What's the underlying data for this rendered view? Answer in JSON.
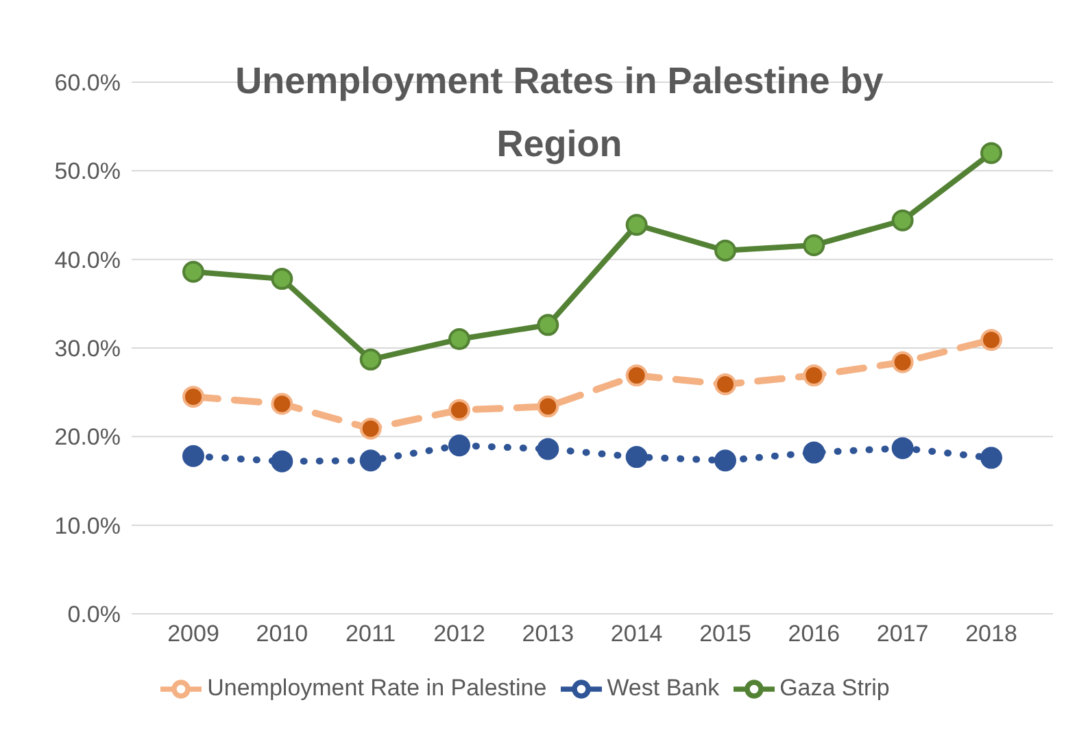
{
  "chart_data": {
    "type": "line",
    "title": "Unemployment Rates in Palestine by Region",
    "categories": [
      "2009",
      "2010",
      "2011",
      "2012",
      "2013",
      "2014",
      "2015",
      "2016",
      "2017",
      "2018"
    ],
    "series": [
      {
        "name": "Unemployment Rate in Palestine",
        "color": "#f4b183",
        "line_style": "dashed",
        "values": [
          24.5,
          23.7,
          20.9,
          23.0,
          23.4,
          26.9,
          25.9,
          26.9,
          28.4,
          30.9
        ]
      },
      {
        "name": "West Bank",
        "color": "#2f5597",
        "line_style": "dotted",
        "values": [
          17.8,
          17.2,
          17.3,
          19.0,
          18.6,
          17.7,
          17.3,
          18.2,
          18.7,
          17.6
        ]
      },
      {
        "name": "Gaza Strip",
        "color": "#548235",
        "line_style": "solid",
        "values": [
          38.6,
          37.8,
          28.7,
          31.0,
          32.6,
          43.9,
          41.0,
          41.6,
          44.4,
          52.0
        ]
      }
    ],
    "ylim": [
      0,
      60
    ],
    "yticks": [
      {
        "value": 0,
        "label": "0.0%"
      },
      {
        "value": 10,
        "label": "10.0%"
      },
      {
        "value": 20,
        "label": "20.0%"
      },
      {
        "value": 30,
        "label": "30.0%"
      },
      {
        "value": 40,
        "label": "40.0%"
      },
      {
        "value": 50,
        "label": "50.0%"
      },
      {
        "value": 60,
        "label": "60.0%"
      }
    ],
    "grid": "y",
    "legend": "bottom",
    "marker": "circle"
  }
}
